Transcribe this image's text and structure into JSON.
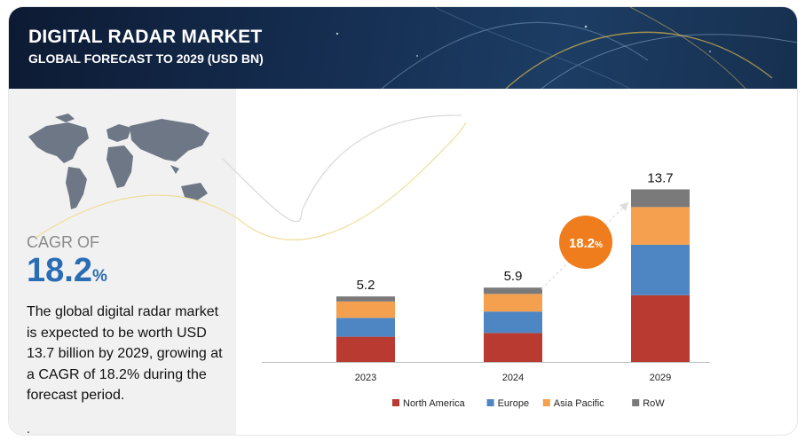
{
  "header": {
    "title": "DIGITAL RADAR  MARKET",
    "subtitle": "GLOBAL FORECAST TO 2029 (USD BN)"
  },
  "left_panel": {
    "map_icon": "world-map-icon",
    "cagr_label": "CAGR OF",
    "cagr_number": "18.2",
    "cagr_unit": "%",
    "description": "The global digital radar market is expected to be worth USD 13.7 billion by 2029, growing at a CAGR of 18.2% during the forecast period.",
    "footnote": "."
  },
  "colors": {
    "North America": "#b83a31",
    "Europe": "#4e86c4",
    "Asia Pacific": "#f4a04f",
    "RoW": "#7a7a7a",
    "cagr_badge": "#f07d1d"
  },
  "chart_data": {
    "type": "bar",
    "stacked": true,
    "categories": [
      "2023",
      "2024",
      "2029"
    ],
    "series": [
      {
        "name": "North America",
        "values": [
          2.0,
          2.3,
          5.3
        ]
      },
      {
        "name": "Europe",
        "values": [
          1.5,
          1.7,
          4.0
        ]
      },
      {
        "name": "Asia Pacific",
        "values": [
          1.3,
          1.4,
          3.0
        ]
      },
      {
        "name": "RoW",
        "values": [
          0.4,
          0.5,
          1.4
        ]
      }
    ],
    "totals": [
      "5.2",
      "5.9",
      "13.7"
    ],
    "cagr_badge": "18.2%",
    "legend_position": "bottom",
    "grid": false
  }
}
